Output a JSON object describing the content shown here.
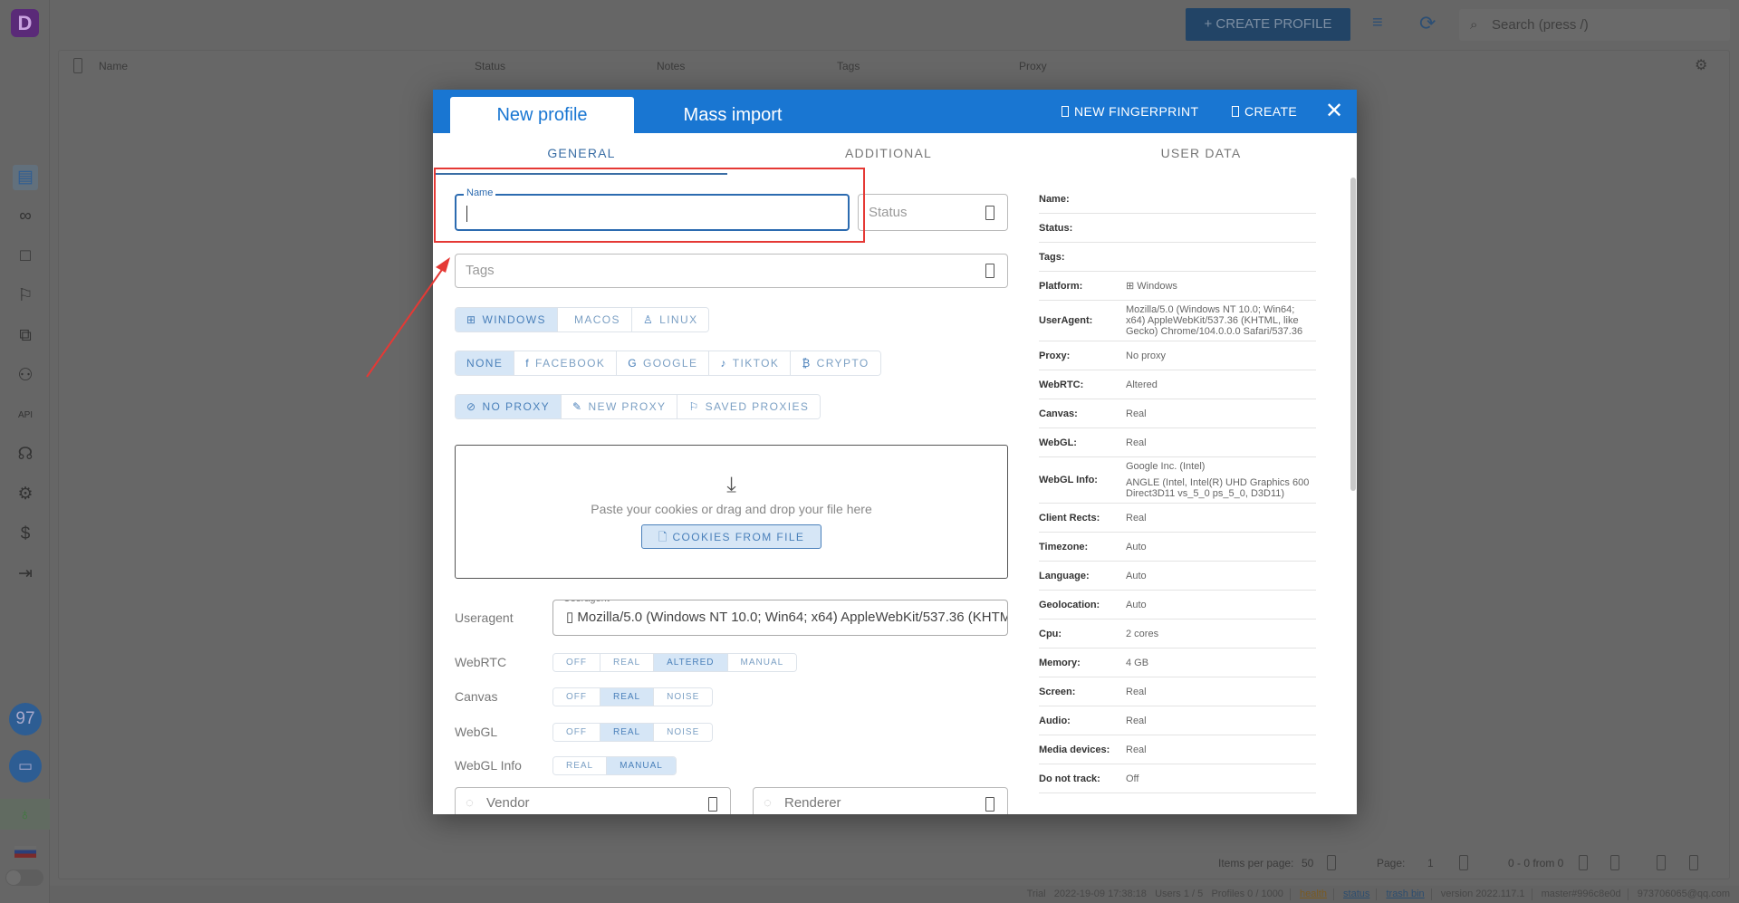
{
  "app": {
    "create_profile_label": "CREATE PROFILE",
    "search_placeholder": "Search (press /)",
    "sidebar_icons": [
      "browser-profiles-icon",
      "link-icon",
      "square-icon",
      "bookmark-icon",
      "extensions-icon",
      "users-icon",
      "api-icon",
      "automation-icon",
      "settings-icon",
      "billing-icon",
      "logout-icon"
    ],
    "badge_count": "97",
    "table_columns": [
      "Name",
      "Status",
      "Notes",
      "Tags",
      "Proxy"
    ],
    "pagination": {
      "items_per_page_label": "Items per page:",
      "items_per_page": "50",
      "page_label": "Page:",
      "page": "1",
      "range": "0 - 0 from 0"
    },
    "status_bar": {
      "plan": "Trial",
      "datetime": "2022-19-09 17:38:18",
      "users": "Users 1 / 5",
      "profiles": "Profiles 0 / 1000",
      "health": "health",
      "status": "status",
      "trash": "trash bin",
      "version": "version 2022.117.1",
      "build": "master#996c8e0d",
      "account": "973706065@qq.com"
    }
  },
  "modal": {
    "tabs": [
      "New profile",
      "Mass import"
    ],
    "new_fingerprint_label": "NEW FINGERPRINT",
    "create_label": "CREATE",
    "subtabs": [
      "GENERAL",
      "ADDITIONAL",
      "USER DATA"
    ],
    "name_label": "Name",
    "name_value": "",
    "status_placeholder": "Status",
    "tags_placeholder": "Tags",
    "os_options": [
      {
        "label": "WINDOWS",
        "icon": "windows-icon",
        "glyph": "⊞",
        "selected": true
      },
      {
        "label": "MACOS",
        "icon": "apple-icon",
        "glyph": "",
        "selected": false
      },
      {
        "label": "LINUX",
        "icon": "linux-icon",
        "glyph": "♙",
        "selected": false
      }
    ],
    "site_options": [
      {
        "label": "NONE",
        "icon": "",
        "glyph": "",
        "selected": true
      },
      {
        "label": "FACEBOOK",
        "icon": "facebook-icon",
        "glyph": "f",
        "selected": false
      },
      {
        "label": "GOOGLE",
        "icon": "google-icon",
        "glyph": "G",
        "selected": false
      },
      {
        "label": "TIKTOK",
        "icon": "tiktok-icon",
        "glyph": "♪",
        "selected": false
      },
      {
        "label": "CRYPTO",
        "icon": "bitcoin-icon",
        "glyph": "₿",
        "selected": false
      }
    ],
    "proxy_options": [
      {
        "label": "NO PROXY",
        "icon": "no-proxy-icon",
        "glyph": "⊘",
        "selected": true
      },
      {
        "label": "NEW PROXY",
        "icon": "edit-icon",
        "glyph": "✎",
        "selected": false
      },
      {
        "label": "SAVED PROXIES",
        "icon": "bookmark-icon",
        "glyph": "⚐",
        "selected": false
      }
    ],
    "cookies_text": "Paste your cookies or drag and drop your file here",
    "cookies_button": "COOKIES FROM FILE",
    "useragent_label": "Useragent",
    "useragent_value": "Mozilla/5.0 (Windows NT 10.0; Win64; x64) AppleWebKit/537.36 (KHTML, like Gecko) Chrome/104.0.0.0 Safari/537.36",
    "toggles": [
      {
        "label": "WebRTC",
        "options": [
          "OFF",
          "REAL",
          "ALTERED",
          "MANUAL"
        ],
        "selected": "ALTERED"
      },
      {
        "label": "Canvas",
        "options": [
          "OFF",
          "REAL",
          "NOISE"
        ],
        "selected": "REAL"
      },
      {
        "label": "WebGL",
        "options": [
          "OFF",
          "REAL",
          "NOISE"
        ],
        "selected": "REAL"
      },
      {
        "label": "WebGL Info",
        "options": [
          "REAL",
          "MANUAL"
        ],
        "selected": "MANUAL"
      }
    ],
    "vendor_placeholder": "Vendor",
    "renderer_placeholder": "Renderer",
    "summary": [
      {
        "key": "Name:",
        "value": ""
      },
      {
        "key": "Status:",
        "value": ""
      },
      {
        "key": "Tags:",
        "value": ""
      },
      {
        "key": "Platform:",
        "value": "Windows"
      },
      {
        "key": "UserAgent:",
        "value": "Mozilla/5.0 (Windows NT 10.0; Win64; x64) AppleWebKit/537.36 (KHTML, like Gecko) Chrome/104.0.0.0 Safari/537.36"
      },
      {
        "key": "Proxy:",
        "value": "No proxy"
      },
      {
        "key": "WebRTC:",
        "value": "Altered"
      },
      {
        "key": "Canvas:",
        "value": "Real"
      },
      {
        "key": "WebGL:",
        "value": "Real"
      },
      {
        "key": "WebGL Info:",
        "value": "Google Inc. (Intel)",
        "value2": "ANGLE (Intel, Intel(R) UHD Graphics 600 Direct3D11 vs_5_0 ps_5_0, D3D11)"
      },
      {
        "key": "Client Rects:",
        "value": "Real"
      },
      {
        "key": "Timezone:",
        "value": "Auto"
      },
      {
        "key": "Language:",
        "value": "Auto"
      },
      {
        "key": "Geolocation:",
        "value": "Auto"
      },
      {
        "key": "Cpu:",
        "value": "2 cores"
      },
      {
        "key": "Memory:",
        "value": "4 GB"
      },
      {
        "key": "Screen:",
        "value": "Real"
      },
      {
        "key": "Audio:",
        "value": "Real"
      },
      {
        "key": "Media devices:",
        "value": "Real"
      },
      {
        "key": "Do not track:",
        "value": "Off"
      }
    ]
  },
  "colors": {
    "accent": "#1976d2",
    "selected_bg": "#d6e6f6",
    "annotation": "#e53935"
  }
}
